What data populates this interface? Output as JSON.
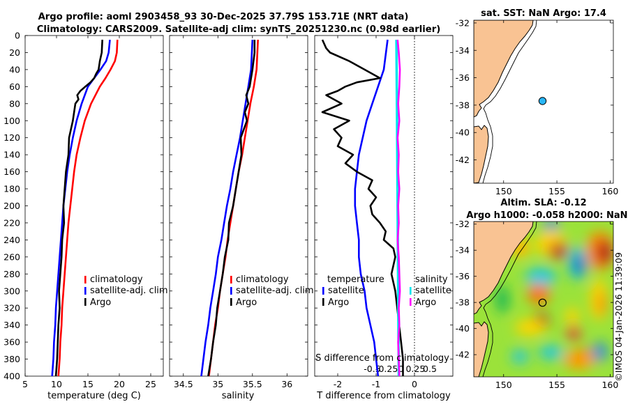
{
  "title_line1": "Argo profile: aoml 2903458_93 30-Dec-2025 37.79S 153.71E (NRT data)",
  "title_line2": "Climatology: CARS2009. Satellite-adj clim: synTS_20251230.nc (0.98d earlier)",
  "watermark": "©IMOS 04-Jan-2026 11:39:09",
  "colors": {
    "climatology": "#ff0000",
    "satellite": "#0000ff",
    "argo": "#000000",
    "sal_sat": "#00e5ee",
    "sal_argo": "#ff00ff",
    "land": "#f9c393",
    "zero_line": "#000000"
  },
  "chart_data": [
    {
      "type": "line",
      "id": "temperature",
      "xlabel": "temperature (deg C)",
      "xlim": [
        5,
        27
      ],
      "ylim": [
        400,
        0
      ],
      "xticks": [
        5,
        10,
        15,
        20,
        25
      ],
      "yticks": [
        0,
        20,
        40,
        60,
        80,
        100,
        120,
        140,
        160,
        180,
        200,
        220,
        240,
        260,
        280,
        300,
        320,
        340,
        360,
        380,
        400
      ],
      "legend": [
        "climatology",
        "satellite-adj. clim",
        "Argo"
      ],
      "series": [
        {
          "name": "climatology",
          "depth": [
            5,
            20,
            30,
            40,
            50,
            60,
            80,
            100,
            120,
            140,
            160,
            180,
            200,
            220,
            240,
            260,
            280,
            300,
            320,
            340,
            360,
            380,
            400
          ],
          "values": [
            19.7,
            19.6,
            19.3,
            18.6,
            17.8,
            16.9,
            15.5,
            14.5,
            13.8,
            13.2,
            12.8,
            12.5,
            12.2,
            11.9,
            11.7,
            11.5,
            11.3,
            11.1,
            10.9,
            10.8,
            10.6,
            10.5,
            10.3
          ]
        },
        {
          "name": "satellite-adj. clim",
          "depth": [
            5,
            20,
            30,
            40,
            50,
            60,
            80,
            100,
            120,
            140,
            160,
            180,
            200,
            220,
            240,
            260,
            280,
            300,
            320,
            340,
            360,
            380,
            400
          ],
          "values": [
            18.5,
            18.3,
            17.9,
            17.0,
            16.0,
            15.0,
            14.0,
            13.2,
            12.6,
            12.1,
            11.7,
            11.4,
            11.1,
            10.9,
            10.7,
            10.5,
            10.3,
            10.1,
            9.9,
            9.8,
            9.6,
            9.5,
            9.3
          ]
        },
        {
          "name": "Argo",
          "depth": [
            5,
            20,
            30,
            40,
            45,
            50,
            55,
            60,
            65,
            70,
            75,
            80,
            100,
            120,
            140,
            160,
            180,
            200,
            220,
            240,
            260,
            280,
            300,
            320,
            340,
            360,
            380,
            400
          ],
          "values": [
            17.3,
            17.2,
            16.9,
            16.7,
            16.3,
            16.0,
            15.4,
            14.6,
            13.8,
            13.3,
            13.5,
            13.0,
            12.6,
            12.0,
            11.9,
            11.5,
            11.3,
            11.1,
            11.2,
            10.9,
            10.8,
            10.6,
            10.4,
            10.5,
            10.3,
            10.2,
            10.1,
            9.9
          ]
        }
      ]
    },
    {
      "type": "line",
      "id": "salinity",
      "xlabel": "salinity",
      "xlim": [
        34.3,
        36.3
      ],
      "ylim": [
        400,
        0
      ],
      "xticks": [
        34.5,
        35,
        35.5,
        36
      ],
      "legend": [
        "climatology",
        "satellite-adj. clim",
        "Argo"
      ],
      "series": [
        {
          "name": "climatology",
          "depth": [
            5,
            40,
            60,
            80,
            100,
            120,
            140,
            160,
            180,
            200,
            220,
            240,
            260,
            280,
            300,
            320,
            340,
            360,
            380,
            400
          ],
          "values": [
            35.58,
            35.56,
            35.52,
            35.47,
            35.43,
            35.39,
            35.35,
            35.3,
            35.26,
            35.22,
            35.18,
            35.14,
            35.11,
            35.07,
            35.03,
            35.0,
            34.96,
            34.93,
            34.9,
            34.87
          ]
        },
        {
          "name": "satellite-adj. clim",
          "depth": [
            5,
            40,
            60,
            80,
            100,
            120,
            140,
            160,
            180,
            200,
            220,
            240,
            260,
            280,
            300,
            320,
            340,
            360,
            380,
            400
          ],
          "values": [
            35.5,
            35.48,
            35.44,
            35.4,
            35.36,
            35.32,
            35.27,
            35.22,
            35.18,
            35.13,
            35.09,
            35.05,
            35.0,
            34.97,
            34.93,
            34.89,
            34.86,
            34.82,
            34.79,
            34.76
          ]
        },
        {
          "name": "Argo",
          "depth": [
            5,
            20,
            40,
            60,
            70,
            80,
            90,
            100,
            120,
            140,
            160,
            180,
            200,
            220,
            240,
            260,
            280,
            300,
            320,
            340,
            360,
            380,
            400
          ],
          "values": [
            35.53,
            35.53,
            35.5,
            35.46,
            35.41,
            35.44,
            35.39,
            35.42,
            35.33,
            35.34,
            35.3,
            35.26,
            35.22,
            35.16,
            35.15,
            35.1,
            35.07,
            35.03,
            34.99,
            34.97,
            34.93,
            34.9,
            34.86
          ]
        }
      ]
    },
    {
      "type": "line",
      "id": "difference",
      "xlabel": "T difference from climatology",
      "xlabel_top": "S difference from climatology",
      "xlim": [
        -2.6,
        1.0
      ],
      "ylim": [
        400,
        0
      ],
      "xticks": [
        -2,
        -1,
        0
      ],
      "xticks_s": [
        -0.5,
        -0.25,
        0,
        0.25,
        0.5
      ],
      "xlim_s": [
        -1.5,
        0.9
      ],
      "legend_t_header": "temperature",
      "legend_s_header": "salinity",
      "legend": [
        "satellite",
        "Argo",
        "satellite",
        "Argo"
      ],
      "series": [
        {
          "name": "temperature satellite",
          "depth": [
            5,
            40,
            60,
            80,
            100,
            120,
            140,
            160,
            180,
            200,
            220,
            240,
            260,
            280,
            300,
            320,
            340,
            360,
            380,
            400
          ],
          "values": [
            -0.7,
            -0.8,
            -0.95,
            -1.1,
            -1.25,
            -1.35,
            -1.45,
            -1.5,
            -1.55,
            -1.55,
            -1.5,
            -1.45,
            -1.45,
            -1.4,
            -1.3,
            -1.25,
            -1.15,
            -1.05,
            -1.0,
            -0.95
          ]
        },
        {
          "name": "temperature Argo",
          "depth": [
            5,
            15,
            20,
            30,
            40,
            50,
            55,
            60,
            65,
            70,
            80,
            90,
            100,
            110,
            120,
            130,
            140,
            150,
            160,
            170,
            180,
            190,
            200,
            210,
            220,
            230,
            240,
            250,
            260,
            280,
            300,
            320,
            340,
            360,
            380,
            400
          ],
          "values": [
            -2.4,
            -2.3,
            -2.2,
            -1.7,
            -1.3,
            -0.9,
            -1.5,
            -1.8,
            -2.0,
            -2.3,
            -1.9,
            -2.4,
            -1.7,
            -2.1,
            -1.9,
            -2.0,
            -1.6,
            -1.8,
            -1.5,
            -1.1,
            -1.2,
            -1.0,
            -1.15,
            -1.1,
            -0.9,
            -0.75,
            -0.8,
            -0.55,
            -0.5,
            -0.6,
            -0.5,
            -0.45,
            -0.4,
            -0.35,
            -0.3,
            -0.3
          ]
        },
        {
          "name": "salinity satellite",
          "depth": [
            5,
            100,
            200,
            300,
            400
          ],
          "values": [
            -0.08,
            -0.07,
            -0.06,
            -0.05,
            -0.04
          ]
        },
        {
          "name": "salinity Argo",
          "depth": [
            5,
            20,
            40,
            60,
            80,
            100,
            120,
            140,
            160,
            180,
            200,
            220,
            240,
            260,
            280,
            300,
            320,
            340,
            360,
            380,
            400
          ],
          "values": [
            -0.06,
            -0.04,
            -0.02,
            -0.03,
            -0.05,
            -0.03,
            -0.06,
            -0.04,
            -0.05,
            -0.03,
            -0.05,
            -0.04,
            -0.06,
            -0.04,
            -0.03,
            -0.02,
            -0.04,
            -0.03,
            -0.05,
            -0.04,
            -0.03
          ]
        }
      ]
    },
    {
      "type": "map",
      "id": "sst_map",
      "title": "sat. SST: NaN Argo: 17.4",
      "xlim": [
        147.2,
        160.3
      ],
      "ylim": [
        -43.7,
        -31.8
      ],
      "xticks": [
        150,
        155,
        160
      ],
      "yticks": [
        -32,
        -34,
        -36,
        -38,
        -40,
        -42
      ],
      "marker": {
        "lon": 153.71,
        "lat": -37.79
      }
    },
    {
      "type": "map",
      "id": "sla_map",
      "title_line1": "Altim. SLA: -0.12",
      "title_line2": "Argo h1000: -0.058 h2000: NaN",
      "xlim": [
        147.2,
        160.3
      ],
      "ylim": [
        -43.7,
        -31.8
      ],
      "xticks": [
        150,
        155,
        160
      ],
      "yticks": [
        -32,
        -34,
        -36,
        -38,
        -40,
        -42
      ],
      "marker": {
        "lon": 153.71,
        "lat": -37.79
      }
    }
  ]
}
